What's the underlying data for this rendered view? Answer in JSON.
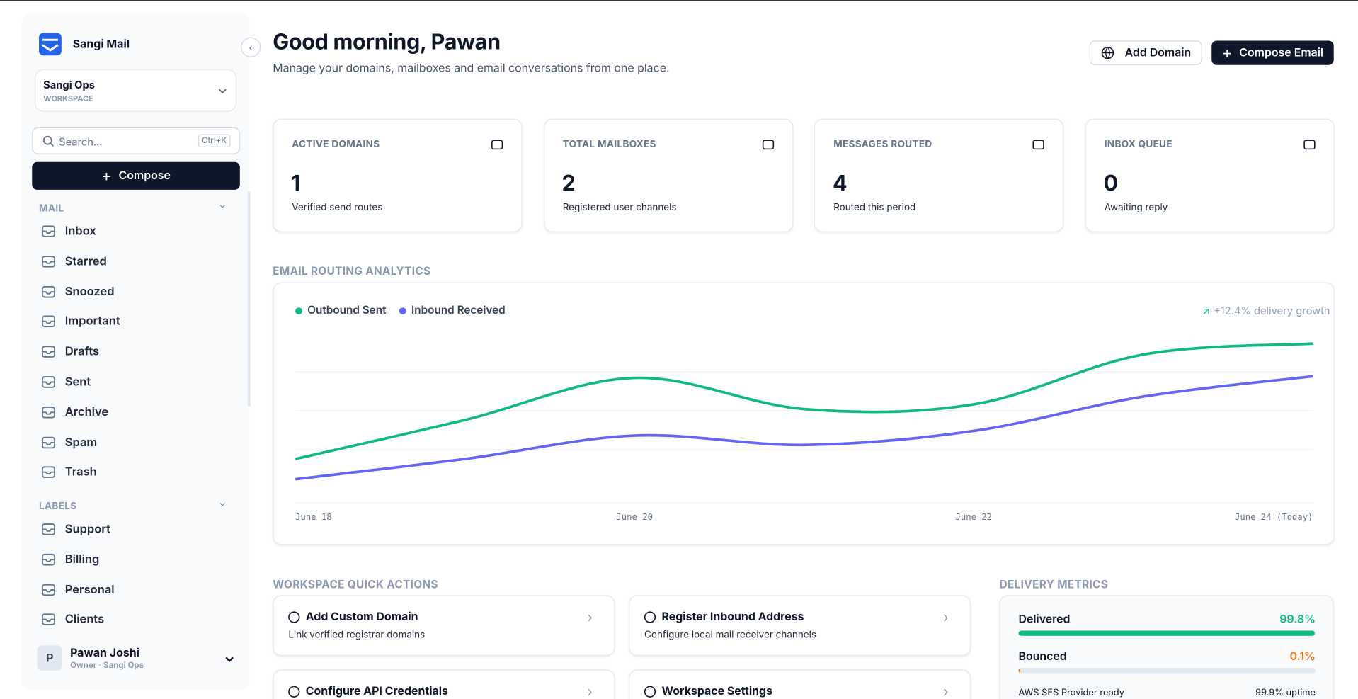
{
  "sidebar": {
    "brand": "Sangi Mail",
    "workspace": {
      "name": "Sangi Ops",
      "role": "WORKSPACE"
    },
    "search": {
      "placeholder": "Search...",
      "shortcut": "Ctrl+K"
    },
    "compose": "Compose",
    "sections": [
      {
        "title": "MAIL",
        "items": [
          "Inbox",
          "Starred",
          "Snoozed",
          "Important",
          "Drafts",
          "Sent",
          "Archive",
          "Spam",
          "Trash"
        ]
      },
      {
        "title": "LABELS",
        "items": [
          "Support",
          "Billing",
          "Personal",
          "Clients"
        ]
      }
    ],
    "user": {
      "initial": "P",
      "name": "Pawan Joshi",
      "role": "Owner · Sangi Ops"
    }
  },
  "header": {
    "title": "Good morning, Pawan",
    "subtitle": "Manage your domains, mailboxes and email conversations from one place.",
    "buttons": [
      "Add Domain",
      "Compose Email"
    ]
  },
  "stats": [
    {
      "label": "ACTIVE DOMAINS",
      "value": 1,
      "caption": "Verified send routes"
    },
    {
      "label": "TOTAL MAILBOXES",
      "value": 2,
      "caption": "Registered user channels"
    },
    {
      "label": "MESSAGES ROUTED",
      "value": 4,
      "caption": "Routed this period"
    },
    {
      "label": "INBOX QUEUE",
      "value": 0,
      "caption": "Awaiting reply"
    }
  ],
  "chart_data": {
    "type": "line",
    "title": "EMAIL ROUTING ANALYTICS",
    "annotation": "+12.4% delivery growth",
    "categories": [
      "June 18",
      null,
      "June 20",
      null,
      "June 22",
      null,
      "June 24 (Today)"
    ],
    "series": [
      {
        "name": "Outbound Sent",
        "color": "#10b981",
        "values": [
          19,
          44,
          71,
          51,
          54,
          86,
          93
        ]
      },
      {
        "name": "Inbound Received",
        "color": "#6366f1",
        "values": [
          6,
          19,
          34,
          28,
          37,
          59,
          72
        ]
      }
    ],
    "ylim": [
      0,
      100
    ],
    "yticks": [
      25,
      50,
      75
    ],
    "grid": true
  },
  "quick_actions": {
    "title": "WORKSPACE QUICK ACTIONS",
    "items": [
      {
        "title": "Add Custom Domain",
        "description": "Link verified registrar domains"
      },
      {
        "title": "Register Inbound Address",
        "description": "Configure local mail receiver channels"
      },
      {
        "title": "Configure API Credentials"
      },
      {
        "title": "Workspace Settings"
      }
    ]
  },
  "delivery_metrics": {
    "title": "DELIVERY METRICS",
    "metrics": [
      {
        "name": "Delivered",
        "value": 99.8,
        "label": "99.8%",
        "color": "#10b981"
      },
      {
        "name": "Bounced",
        "value": 0.1,
        "label": "0.1%",
        "color": "#f97316"
      }
    ],
    "provider": "AWS SES Provider ready",
    "uptime": "99.9% uptime"
  }
}
